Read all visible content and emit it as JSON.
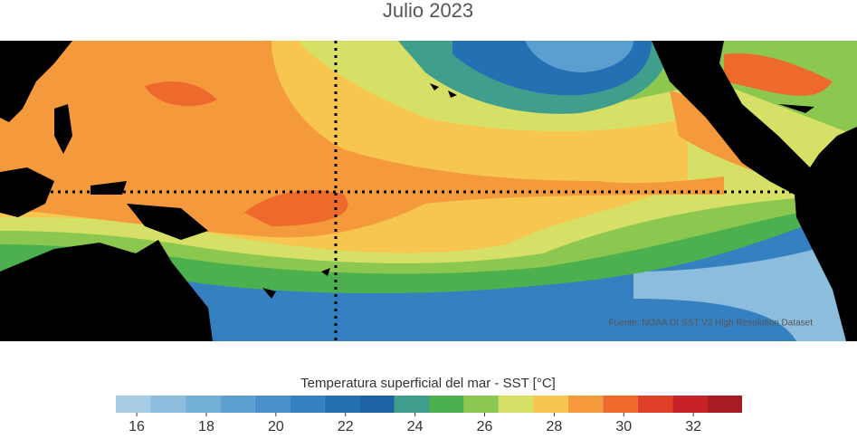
{
  "title": "Julio 2023",
  "source": "Fuente: NOAA OI SST V2 High Resolution Dataset",
  "colorbar": {
    "label": "Temperatura superficial del mar - SST  [°C]",
    "bins": [
      15.4,
      16.4,
      17.4,
      18.4,
      19.4,
      20.4,
      21.4,
      22.4,
      23.4,
      24.4,
      25.4,
      26.4,
      27.4,
      28.4,
      29.4,
      30.4,
      31.4,
      32.4,
      33.4
    ],
    "colors": [
      "#a6cbe3",
      "#8cbddc",
      "#74afd8",
      "#5b9fd0",
      "#4a91c9",
      "#3580c0",
      "#2470b3",
      "#1d62a3",
      "#3f9e8c",
      "#4cb04f",
      "#8cc850",
      "#d6e066",
      "#f7c64f",
      "#f59a3c",
      "#ee6a2c",
      "#e03f27",
      "#c92128",
      "#a71c22"
    ],
    "ticks": [
      16,
      18,
      20,
      22,
      24,
      26,
      28,
      30,
      32
    ]
  }
}
